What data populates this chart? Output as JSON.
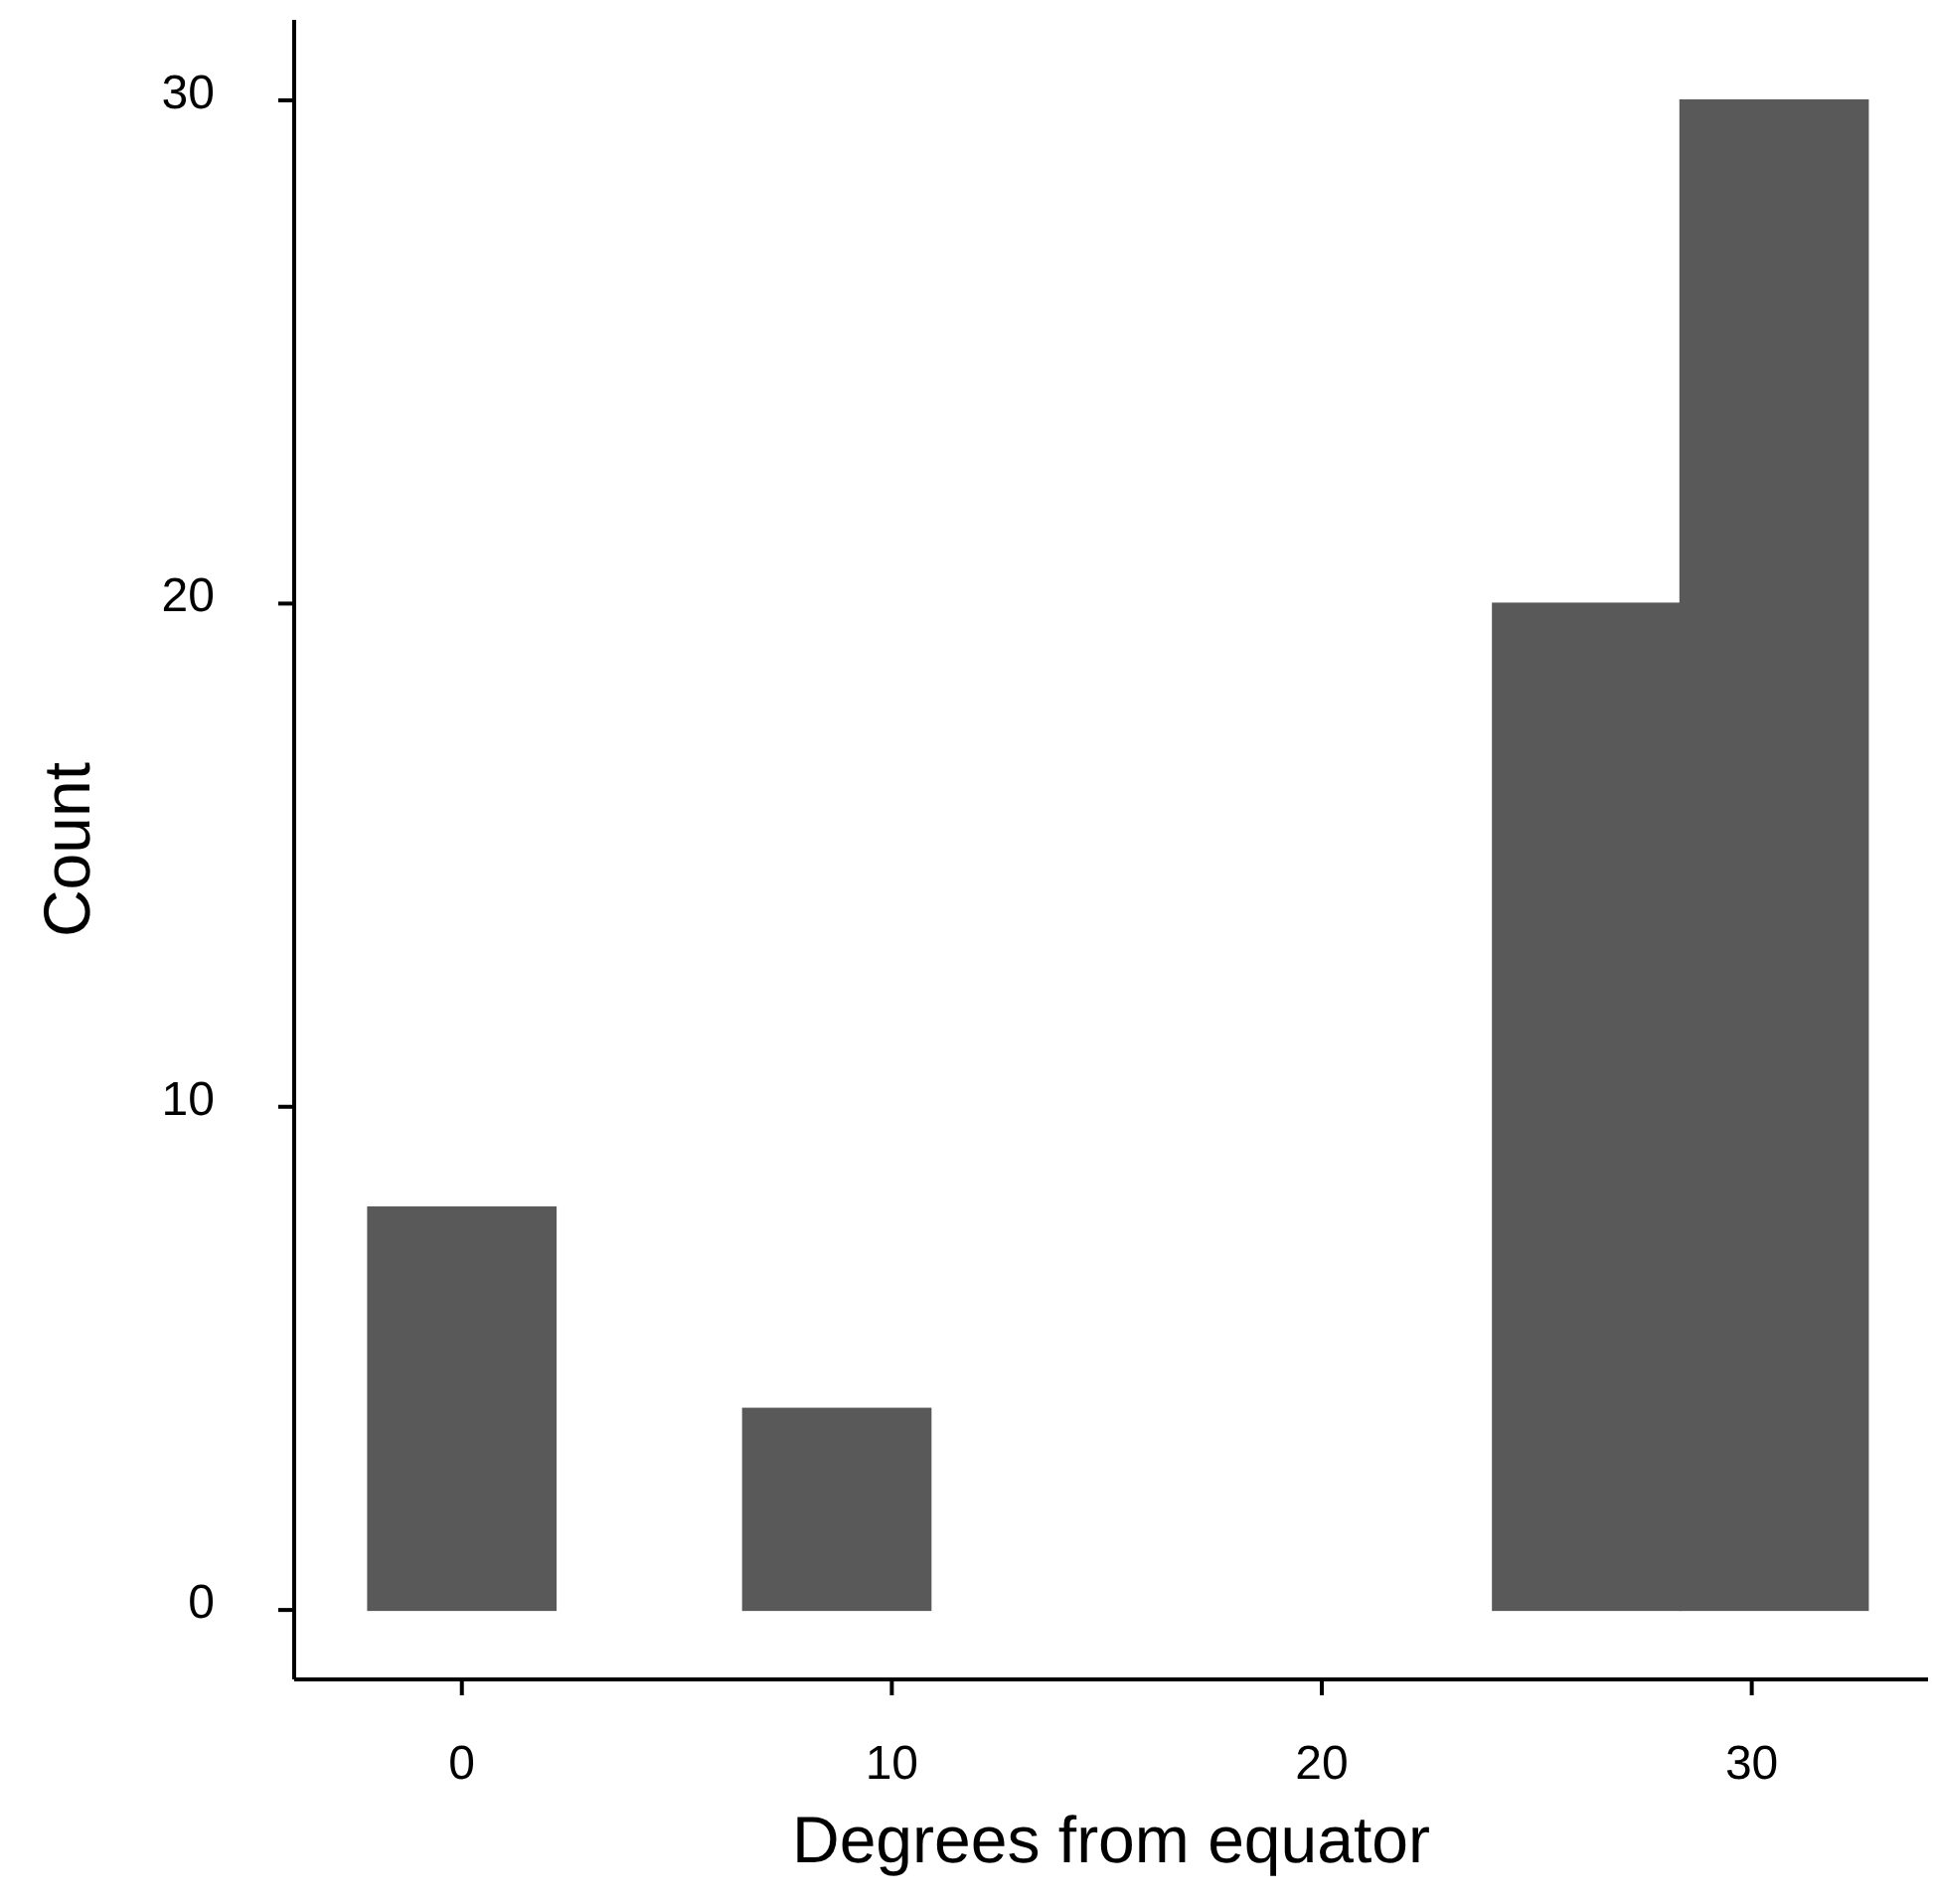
{
  "chart_data": {
    "type": "histogram",
    "xlabel": "Degrees from equator",
    "ylabel": "Count",
    "color": "#595959",
    "bins": [
      -2.18,
      2.18,
      6.54,
      10.9,
      15.26,
      19.62,
      23.98,
      28.34,
      32.7
    ],
    "values": [
      8,
      0,
      4,
      0,
      0,
      0,
      20,
      30
    ],
    "xlim": [
      -3.9,
      34.1
    ],
    "ylim": [
      -1.38,
      31.6
    ],
    "xticks": [
      0,
      10,
      20,
      30
    ],
    "yticks": [
      0,
      10,
      20,
      30
    ],
    "grid": false
  }
}
